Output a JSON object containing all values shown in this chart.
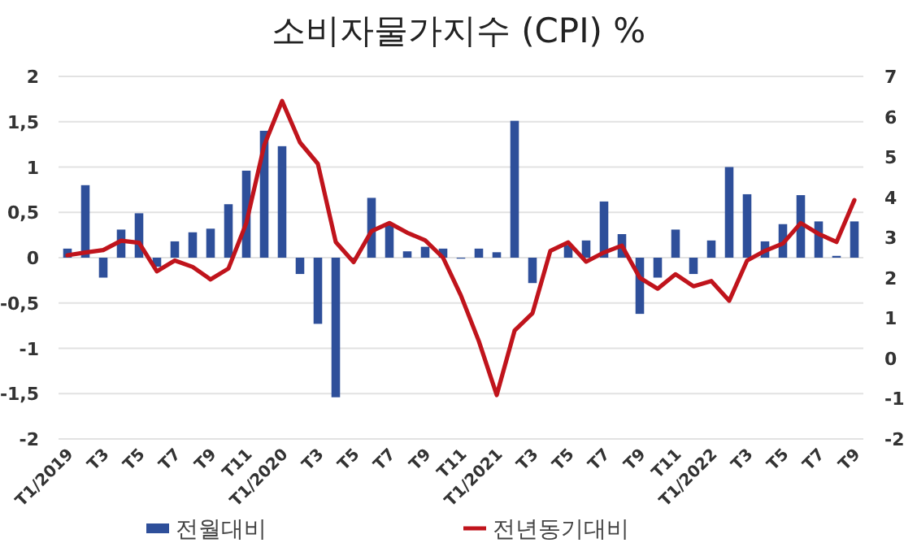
{
  "chart_data": {
    "type": "bar",
    "title": "소비자물가지수 (CPI) %",
    "categories": [
      "T1/2019",
      null,
      "T3",
      null,
      "T5",
      null,
      "T7",
      null,
      "T9",
      null,
      "T11",
      null,
      "T1/2020",
      null,
      "T3",
      null,
      "T5",
      null,
      "T7",
      null,
      "T9",
      null,
      "T11",
      null,
      "T1/2021",
      null,
      "T3",
      null,
      "T5",
      null,
      "T7",
      null,
      "T9",
      null,
      "T11",
      null,
      "T1/2022",
      null,
      "T3",
      null,
      "T5",
      null,
      "T7",
      null,
      "T9"
    ],
    "series": [
      {
        "name": "전월대비",
        "color": "#2e4f9a",
        "values": [
          0.1,
          0.8,
          -0.22,
          0.31,
          0.49,
          -0.1,
          0.18,
          0.28,
          0.32,
          0.59,
          0.96,
          1.4,
          1.23,
          -0.18,
          -0.73,
          -1.54,
          0,
          0.66,
          0.37,
          0.07,
          0.12,
          0.1,
          -0.01,
          0.1,
          0.06,
          1.51,
          -0.28,
          null,
          0.14,
          0.19,
          0.62,
          0.26,
          -0.62,
          -0.22,
          0.31,
          -0.18,
          0.19,
          1.0,
          0.7,
          0.18,
          0.37,
          0.69,
          0.4,
          0.02,
          0.4
        ]
      },
      {
        "name": "전년동기대비",
        "type": "line",
        "axis": "y2",
        "color": "#c0141c",
        "values": [
          2.56,
          2.63,
          2.69,
          2.92,
          2.87,
          2.16,
          2.43,
          2.27,
          1.96,
          2.23,
          3.36,
          5.29,
          6.39,
          5.36,
          4.83,
          2.89,
          2.39,
          3.16,
          3.36,
          3.12,
          2.93,
          2.5,
          1.56,
          0.43,
          -0.91,
          0.69,
          1.12,
          2.67,
          2.88,
          2.4,
          2.63,
          2.8,
          2.0,
          1.73,
          2.09,
          1.79,
          1.92,
          1.43,
          2.43,
          2.67,
          2.85,
          3.36,
          3.09,
          2.89,
          3.93
        ]
      }
    ],
    "ylim": [
      -2,
      2
    ],
    "yticks": [
      {
        "value": -2,
        "label": "-2"
      },
      {
        "value": -1.5,
        "label": "-1,5"
      },
      {
        "value": -1,
        "label": "-1"
      },
      {
        "value": -0.5,
        "label": "-0,5"
      },
      {
        "value": 0,
        "label": "0"
      },
      {
        "value": 0.5,
        "label": "0,5"
      },
      {
        "value": 1,
        "label": "1"
      },
      {
        "value": 1.5,
        "label": "1,5"
      },
      {
        "value": 2,
        "label": "2"
      }
    ],
    "y2lim": [
      -2,
      7
    ],
    "y2ticks": [
      -2,
      -1,
      0,
      1,
      2,
      3,
      4,
      5,
      6,
      7
    ],
    "grid": "y",
    "legend": "bottom"
  }
}
